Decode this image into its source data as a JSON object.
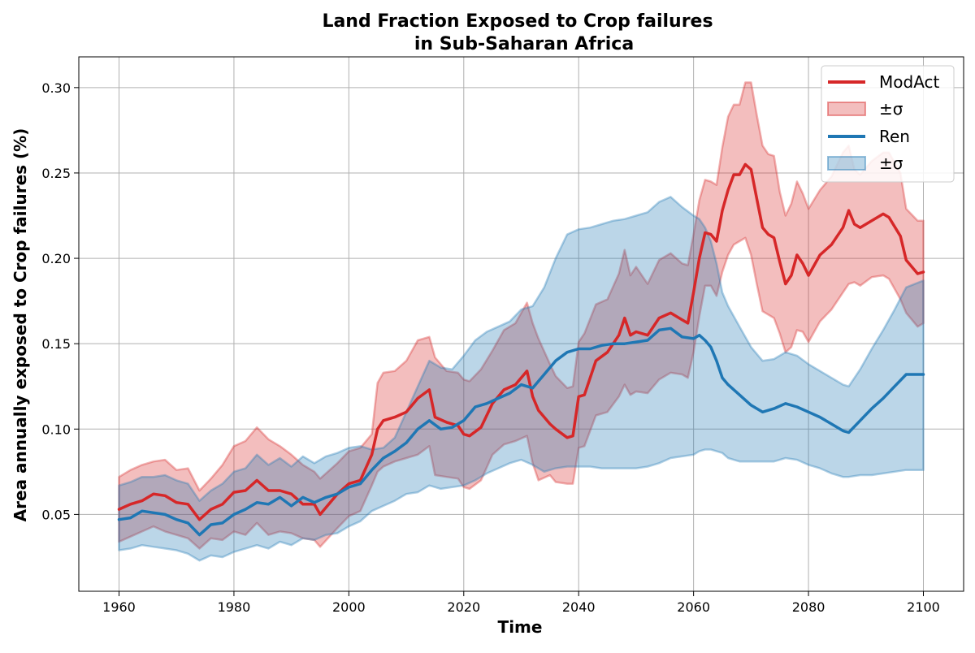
{
  "chart_data": {
    "type": "line",
    "title_line1": "Land Fraction Exposed to Crop failures",
    "title_line2": "in Sub-Saharan Africa",
    "xlabel": "Time",
    "ylabel": "Area annually exposed to Crop failures (%)",
    "xlim": [
      1953,
      2107
    ],
    "ylim": [
      0.005,
      0.318
    ],
    "xticks": [
      1960,
      1980,
      2000,
      2020,
      2040,
      2060,
      2080,
      2100
    ],
    "yticks": [
      0.05,
      0.1,
      0.15,
      0.2,
      0.25,
      0.3
    ],
    "ytick_labels": [
      "0.05",
      "0.10",
      "0.15",
      "0.20",
      "0.25",
      "0.30"
    ],
    "grid": true,
    "legend_position": "top-right",
    "legend": [
      "ModAct",
      "±σ",
      "Ren",
      "±σ"
    ],
    "series": [
      {
        "name": "ModAct",
        "color": "#d62728",
        "x": [
          1960,
          1962,
          1964,
          1966,
          1968,
          1970,
          1972,
          1974,
          1976,
          1978,
          1980,
          1982,
          1984,
          1986,
          1988,
          1990,
          1992,
          1994,
          1995,
          1998,
          2000,
          2002,
          2004,
          2005,
          2006,
          2008,
          2010,
          2012,
          2014,
          2015,
          2017,
          2019,
          2020,
          2021,
          2023,
          2025,
          2027,
          2029,
          2031,
          2032,
          2033,
          2035,
          2036,
          2038,
          2039,
          2040,
          2041,
          2043,
          2045,
          2047,
          2048,
          2049,
          2050,
          2052,
          2054,
          2056,
          2058,
          2059,
          2060,
          2061,
          2062,
          2063,
          2064,
          2065,
          2066,
          2067,
          2068,
          2069,
          2070,
          2071,
          2072,
          2073,
          2074,
          2075,
          2076,
          2077,
          2078,
          2079,
          2080,
          2082,
          2084,
          2086,
          2087,
          2088,
          2089,
          2091,
          2093,
          2094,
          2096,
          2097,
          2099,
          2100
        ],
        "y": [
          0.053,
          0.056,
          0.058,
          0.062,
          0.061,
          0.057,
          0.056,
          0.047,
          0.053,
          0.056,
          0.063,
          0.064,
          0.07,
          0.064,
          0.064,
          0.062,
          0.056,
          0.056,
          0.05,
          0.062,
          0.068,
          0.07,
          0.085,
          0.1,
          0.105,
          0.107,
          0.11,
          0.118,
          0.123,
          0.107,
          0.104,
          0.102,
          0.097,
          0.096,
          0.101,
          0.115,
          0.123,
          0.126,
          0.134,
          0.119,
          0.111,
          0.103,
          0.1,
          0.095,
          0.096,
          0.119,
          0.12,
          0.14,
          0.145,
          0.155,
          0.165,
          0.155,
          0.157,
          0.155,
          0.165,
          0.168,
          0.164,
          0.162,
          0.18,
          0.2,
          0.215,
          0.214,
          0.21,
          0.228,
          0.24,
          0.249,
          0.249,
          0.255,
          0.252,
          0.235,
          0.218,
          0.214,
          0.212,
          0.198,
          0.185,
          0.19,
          0.202,
          0.197,
          0.19,
          0.202,
          0.208,
          0.218,
          0.228,
          0.22,
          0.218,
          0.222,
          0.226,
          0.224,
          0.213,
          0.199,
          0.191,
          0.192
        ],
        "band_upper": [
          0.072,
          0.076,
          0.079,
          0.081,
          0.082,
          0.076,
          0.077,
          0.064,
          0.071,
          0.079,
          0.09,
          0.093,
          0.101,
          0.094,
          0.09,
          0.085,
          0.079,
          0.075,
          0.071,
          0.08,
          0.087,
          0.089,
          0.097,
          0.127,
          0.133,
          0.134,
          0.14,
          0.152,
          0.154,
          0.142,
          0.134,
          0.133,
          0.129,
          0.128,
          0.135,
          0.146,
          0.158,
          0.162,
          0.174,
          0.162,
          0.153,
          0.138,
          0.131,
          0.124,
          0.125,
          0.151,
          0.156,
          0.173,
          0.176,
          0.191,
          0.205,
          0.19,
          0.195,
          0.185,
          0.199,
          0.203,
          0.197,
          0.196,
          0.214,
          0.234,
          0.246,
          0.245,
          0.243,
          0.265,
          0.283,
          0.29,
          0.29,
          0.303,
          0.303,
          0.284,
          0.266,
          0.261,
          0.26,
          0.239,
          0.225,
          0.232,
          0.245,
          0.238,
          0.229,
          0.24,
          0.248,
          0.262,
          0.266,
          0.252,
          0.249,
          0.257,
          0.262,
          0.262,
          0.25,
          0.229,
          0.222,
          0.222
        ],
        "band_lower": [
          0.034,
          0.037,
          0.04,
          0.043,
          0.04,
          0.038,
          0.036,
          0.03,
          0.036,
          0.035,
          0.04,
          0.038,
          0.045,
          0.038,
          0.04,
          0.039,
          0.036,
          0.035,
          0.031,
          0.042,
          0.049,
          0.052,
          0.067,
          0.075,
          0.078,
          0.081,
          0.083,
          0.085,
          0.09,
          0.073,
          0.072,
          0.071,
          0.066,
          0.065,
          0.07,
          0.085,
          0.091,
          0.093,
          0.096,
          0.08,
          0.07,
          0.073,
          0.069,
          0.068,
          0.068,
          0.089,
          0.09,
          0.108,
          0.11,
          0.119,
          0.126,
          0.12,
          0.122,
          0.121,
          0.129,
          0.133,
          0.132,
          0.13,
          0.145,
          0.166,
          0.184,
          0.184,
          0.178,
          0.192,
          0.202,
          0.208,
          0.21,
          0.212,
          0.202,
          0.185,
          0.169,
          0.167,
          0.165,
          0.156,
          0.145,
          0.148,
          0.158,
          0.157,
          0.151,
          0.163,
          0.17,
          0.18,
          0.185,
          0.186,
          0.184,
          0.189,
          0.19,
          0.188,
          0.176,
          0.168,
          0.16,
          0.162
        ]
      },
      {
        "name": "Ren",
        "color": "#1f77b4",
        "x": [
          1960,
          1962,
          1964,
          1966,
          1968,
          1970,
          1972,
          1974,
          1976,
          1978,
          1980,
          1982,
          1984,
          1986,
          1988,
          1990,
          1992,
          1994,
          1996,
          1998,
          2000,
          2002,
          2004,
          2006,
          2008,
          2010,
          2012,
          2014,
          2016,
          2018,
          2020,
          2022,
          2024,
          2026,
          2028,
          2030,
          2032,
          2034,
          2036,
          2038,
          2040,
          2042,
          2044,
          2046,
          2048,
          2050,
          2052,
          2054,
          2056,
          2058,
          2060,
          2061,
          2062,
          2063,
          2064,
          2065,
          2066,
          2068,
          2070,
          2072,
          2074,
          2076,
          2078,
          2080,
          2082,
          2084,
          2086,
          2087,
          2089,
          2091,
          2093,
          2095,
          2097,
          2100
        ],
        "y": [
          0.047,
          0.048,
          0.052,
          0.051,
          0.05,
          0.047,
          0.045,
          0.038,
          0.044,
          0.045,
          0.05,
          0.053,
          0.057,
          0.056,
          0.06,
          0.055,
          0.06,
          0.057,
          0.06,
          0.062,
          0.066,
          0.068,
          0.076,
          0.083,
          0.087,
          0.092,
          0.1,
          0.105,
          0.1,
          0.101,
          0.105,
          0.113,
          0.115,
          0.118,
          0.121,
          0.126,
          0.124,
          0.132,
          0.14,
          0.145,
          0.147,
          0.147,
          0.149,
          0.15,
          0.15,
          0.151,
          0.152,
          0.158,
          0.159,
          0.154,
          0.153,
          0.155,
          0.152,
          0.148,
          0.14,
          0.13,
          0.126,
          0.12,
          0.114,
          0.11,
          0.112,
          0.115,
          0.113,
          0.11,
          0.107,
          0.103,
          0.099,
          0.098,
          0.105,
          0.112,
          0.118,
          0.125,
          0.132,
          0.132
        ],
        "band_upper": [
          0.067,
          0.069,
          0.072,
          0.072,
          0.073,
          0.07,
          0.068,
          0.058,
          0.064,
          0.068,
          0.075,
          0.077,
          0.085,
          0.079,
          0.083,
          0.078,
          0.084,
          0.08,
          0.084,
          0.086,
          0.089,
          0.09,
          0.088,
          0.089,
          0.095,
          0.11,
          0.125,
          0.14,
          0.136,
          0.135,
          0.143,
          0.152,
          0.157,
          0.16,
          0.163,
          0.17,
          0.172,
          0.183,
          0.2,
          0.214,
          0.217,
          0.218,
          0.22,
          0.222,
          0.223,
          0.225,
          0.227,
          0.233,
          0.236,
          0.23,
          0.225,
          0.223,
          0.218,
          0.21,
          0.197,
          0.18,
          0.172,
          0.16,
          0.148,
          0.14,
          0.141,
          0.145,
          0.143,
          0.138,
          0.134,
          0.13,
          0.126,
          0.125,
          0.135,
          0.147,
          0.158,
          0.17,
          0.183,
          0.187
        ],
        "band_lower": [
          0.029,
          0.03,
          0.032,
          0.031,
          0.03,
          0.029,
          0.027,
          0.023,
          0.026,
          0.025,
          0.028,
          0.03,
          0.032,
          0.03,
          0.034,
          0.032,
          0.036,
          0.035,
          0.038,
          0.039,
          0.043,
          0.046,
          0.052,
          0.055,
          0.058,
          0.062,
          0.063,
          0.067,
          0.065,
          0.066,
          0.067,
          0.07,
          0.074,
          0.077,
          0.08,
          0.082,
          0.079,
          0.075,
          0.077,
          0.078,
          0.078,
          0.078,
          0.077,
          0.077,
          0.077,
          0.077,
          0.078,
          0.08,
          0.083,
          0.084,
          0.085,
          0.087,
          0.088,
          0.088,
          0.087,
          0.086,
          0.083,
          0.081,
          0.081,
          0.081,
          0.081,
          0.083,
          0.082,
          0.079,
          0.077,
          0.074,
          0.072,
          0.072,
          0.073,
          0.073,
          0.074,
          0.075,
          0.076,
          0.076
        ]
      }
    ]
  }
}
